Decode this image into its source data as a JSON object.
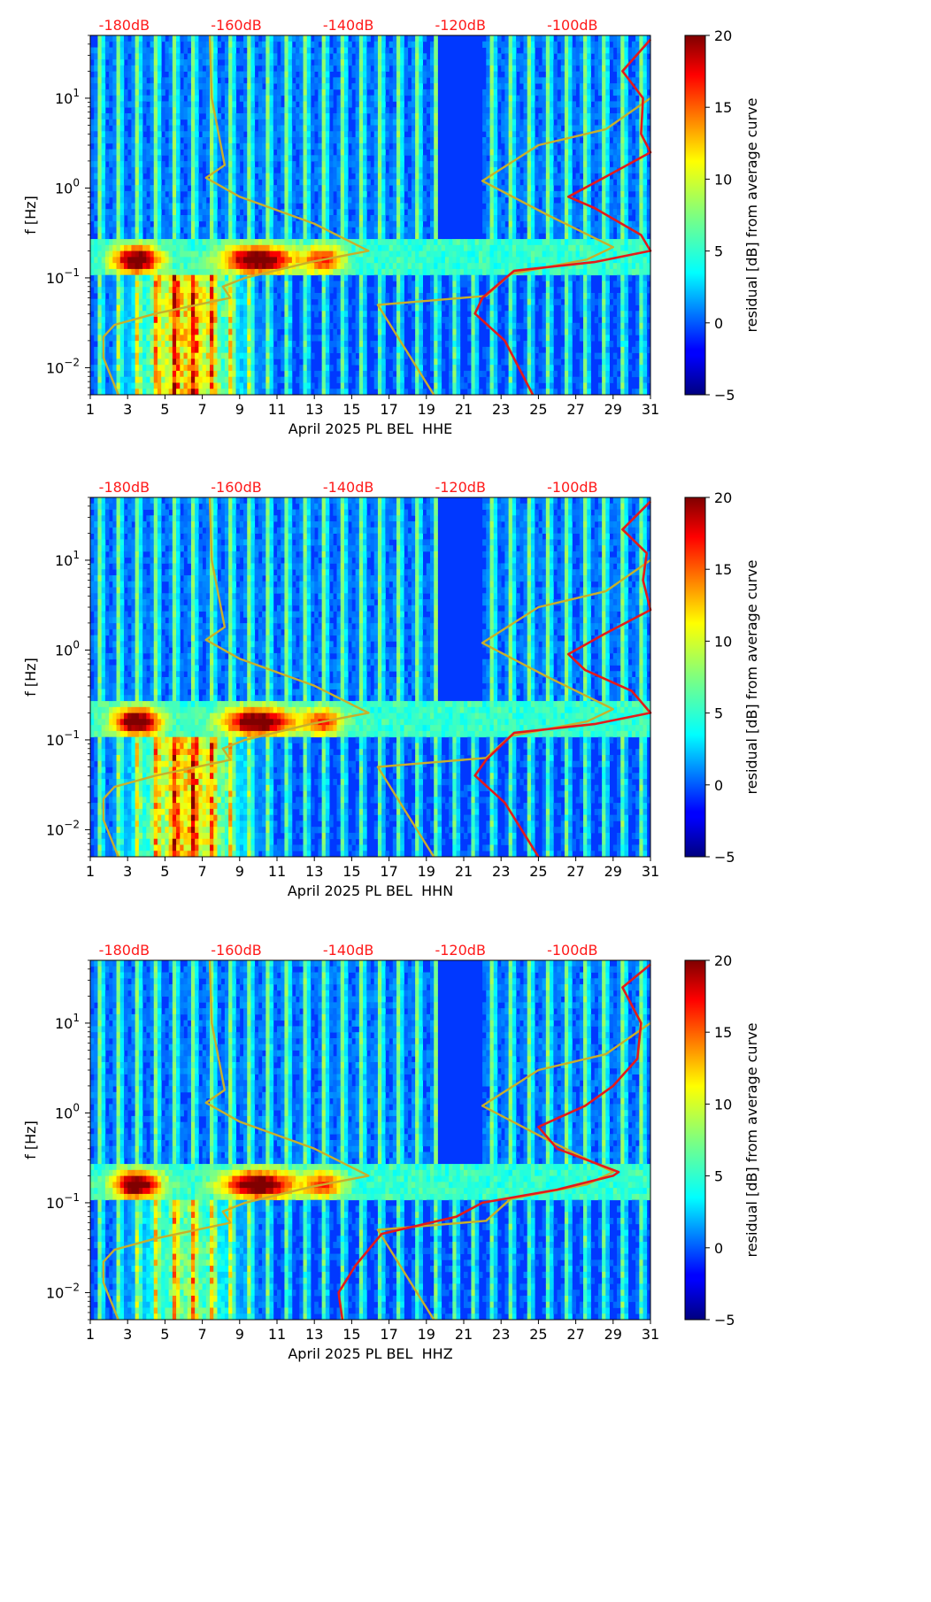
{
  "chart_data": [
    {
      "type": "heatmap",
      "title": "",
      "xlabel": "April 2025 PL BEL  HHE",
      "ylabel": "f [Hz]",
      "x_ticks": [
        "1",
        "3",
        "5",
        "7",
        "9",
        "11",
        "13",
        "15",
        "17",
        "19",
        "21",
        "23",
        "25",
        "27",
        "29",
        "31"
      ],
      "y_ticks": [
        {
          "exp": "1",
          "value": 10
        },
        {
          "exp": "0",
          "value": 1
        },
        {
          "exp": "−1",
          "value": 0.1
        },
        {
          "exp": "−2",
          "value": 0.01
        }
      ],
      "xlim": [
        1,
        31
      ],
      "ylim": [
        0.005,
        50
      ],
      "top_labels": [
        "-180dB",
        "-160dB",
        "-140dB",
        "-120dB",
        "-100dB"
      ],
      "colorbar": {
        "label": "residual [dB] from average curve",
        "ticks": [
          "20",
          "15",
          "10",
          "5",
          "0",
          "−5"
        ],
        "range": [
          -5,
          20
        ]
      },
      "lines": [
        {
          "name": "model curve (yellow)",
          "color": "#c8b02a",
          "points": [
            [
              2.5,
              0.005
            ],
            [
              1.7,
              0.013
            ],
            [
              1.7,
              0.022
            ],
            [
              2.3,
              0.03
            ],
            [
              4.5,
              0.04
            ],
            [
              8.5,
              0.06
            ],
            [
              8.1,
              0.08
            ],
            [
              9.3,
              0.1
            ],
            [
              12.8,
              0.15
            ],
            [
              15.9,
              0.2
            ],
            [
              13,
              0.4
            ],
            [
              9,
              0.8
            ],
            [
              7.2,
              1.3
            ],
            [
              8.2,
              1.8
            ],
            [
              7.5,
              10
            ],
            [
              7.4,
              50
            ]
          ]
        },
        {
          "name": "model curve (yellow, right)",
          "color": "#c8b02a",
          "points": [
            [
              19.4,
              0.005
            ],
            [
              16.4,
              0.05
            ],
            [
              22.2,
              0.063
            ],
            [
              23.5,
              0.11
            ],
            [
              27.6,
              0.16
            ],
            [
              29,
              0.22
            ],
            [
              25.5,
              0.5
            ],
            [
              22,
              1.2
            ],
            [
              25,
              3
            ],
            [
              28.6,
              4.5
            ],
            [
              31,
              10
            ]
          ]
        },
        {
          "name": "PSD curve (red)",
          "color": "#e41a1a",
          "points": [
            [
              24.7,
              0.005
            ],
            [
              23.2,
              0.02
            ],
            [
              21.6,
              0.04
            ],
            [
              22,
              0.06
            ],
            [
              23.7,
              0.12
            ],
            [
              28,
              0.15
            ],
            [
              31,
              0.2
            ],
            [
              30.5,
              0.3
            ],
            [
              28,
              0.6
            ],
            [
              26.6,
              0.8
            ],
            [
              28.5,
              1.3
            ],
            [
              31,
              2.5
            ],
            [
              30.5,
              4
            ],
            [
              30.6,
              10
            ],
            [
              29.5,
              20
            ],
            [
              31,
              45
            ]
          ]
        }
      ]
    },
    {
      "type": "heatmap",
      "title": "",
      "xlabel": "April 2025 PL BEL  HHN",
      "ylabel": "f [Hz]",
      "x_ticks": [
        "1",
        "3",
        "5",
        "7",
        "9",
        "11",
        "13",
        "15",
        "17",
        "19",
        "21",
        "23",
        "25",
        "27",
        "29",
        "31"
      ],
      "y_ticks": [
        {
          "exp": "1",
          "value": 10
        },
        {
          "exp": "0",
          "value": 1
        },
        {
          "exp": "−1",
          "value": 0.1
        },
        {
          "exp": "−2",
          "value": 0.01
        }
      ],
      "xlim": [
        1,
        31
      ],
      "ylim": [
        0.005,
        50
      ],
      "top_labels": [
        "-180dB",
        "-160dB",
        "-140dB",
        "-120dB",
        "-100dB"
      ],
      "colorbar": {
        "label": "residual [dB] from average curve",
        "ticks": [
          "20",
          "15",
          "10",
          "5",
          "0",
          "−5"
        ],
        "range": [
          -5,
          20
        ]
      },
      "lines": [
        {
          "name": "model curve (yellow)",
          "color": "#c8b02a",
          "points": [
            [
              2.5,
              0.005
            ],
            [
              1.7,
              0.013
            ],
            [
              1.7,
              0.022
            ],
            [
              2.3,
              0.03
            ],
            [
              4.5,
              0.04
            ],
            [
              8.5,
              0.06
            ],
            [
              8.1,
              0.08
            ],
            [
              9.3,
              0.1
            ],
            [
              12.8,
              0.15
            ],
            [
              15.9,
              0.2
            ],
            [
              13,
              0.4
            ],
            [
              9,
              0.8
            ],
            [
              7.2,
              1.3
            ],
            [
              8.2,
              1.8
            ],
            [
              7.5,
              10
            ],
            [
              7.4,
              50
            ]
          ]
        },
        {
          "name": "model curve (yellow, right)",
          "color": "#c8b02a",
          "points": [
            [
              19.4,
              0.005
            ],
            [
              16.4,
              0.05
            ],
            [
              22.2,
              0.063
            ],
            [
              23.5,
              0.11
            ],
            [
              27.6,
              0.16
            ],
            [
              29,
              0.22
            ],
            [
              25.5,
              0.5
            ],
            [
              22,
              1.2
            ],
            [
              25,
              3
            ],
            [
              28.6,
              4.5
            ],
            [
              31,
              10
            ]
          ]
        },
        {
          "name": "PSD curve (red)",
          "color": "#e41a1a",
          "points": [
            [
              25,
              0.005
            ],
            [
              23.2,
              0.02
            ],
            [
              21.6,
              0.04
            ],
            [
              22.2,
              0.06
            ],
            [
              23.7,
              0.12
            ],
            [
              28,
              0.15
            ],
            [
              31,
              0.2
            ],
            [
              30,
              0.35
            ],
            [
              27.5,
              0.6
            ],
            [
              26.6,
              0.9
            ],
            [
              28.5,
              1.5
            ],
            [
              31,
              2.8
            ],
            [
              30.6,
              6
            ],
            [
              30.8,
              12
            ],
            [
              29.5,
              22
            ],
            [
              31,
              45
            ]
          ]
        }
      ]
    },
    {
      "type": "heatmap",
      "title": "",
      "xlabel": "April 2025 PL BEL  HHZ",
      "ylabel": "f [Hz]",
      "x_ticks": [
        "1",
        "3",
        "5",
        "7",
        "9",
        "11",
        "13",
        "15",
        "17",
        "19",
        "21",
        "23",
        "25",
        "27",
        "29",
        "31"
      ],
      "y_ticks": [
        {
          "exp": "1",
          "value": 10
        },
        {
          "exp": "0",
          "value": 1
        },
        {
          "exp": "−1",
          "value": 0.1
        },
        {
          "exp": "−2",
          "value": 0.01
        }
      ],
      "xlim": [
        1,
        31
      ],
      "ylim": [
        0.005,
        50
      ],
      "top_labels": [
        "-180dB",
        "-160dB",
        "-140dB",
        "-120dB",
        "-100dB"
      ],
      "colorbar": {
        "label": "residual [dB] from average curve",
        "ticks": [
          "20",
          "15",
          "10",
          "5",
          "0",
          "−5"
        ],
        "range": [
          -5,
          20
        ]
      },
      "lines": [
        {
          "name": "model curve (yellow)",
          "color": "#c8b02a",
          "points": [
            [
              2.5,
              0.005
            ],
            [
              1.7,
              0.013
            ],
            [
              1.7,
              0.022
            ],
            [
              2.3,
              0.03
            ],
            [
              4.5,
              0.04
            ],
            [
              8.5,
              0.06
            ],
            [
              8.1,
              0.08
            ],
            [
              9.3,
              0.1
            ],
            [
              12.8,
              0.15
            ],
            [
              15.9,
              0.2
            ],
            [
              13,
              0.4
            ],
            [
              9,
              0.8
            ],
            [
              7.2,
              1.3
            ],
            [
              8.2,
              1.8
            ],
            [
              7.5,
              10
            ],
            [
              7.4,
              50
            ]
          ]
        },
        {
          "name": "model curve (yellow, right)",
          "color": "#c8b02a",
          "points": [
            [
              19.4,
              0.005
            ],
            [
              16.4,
              0.05
            ],
            [
              22.2,
              0.063
            ],
            [
              23.5,
              0.11
            ],
            [
              27.6,
              0.16
            ],
            [
              29,
              0.22
            ],
            [
              25.5,
              0.5
            ],
            [
              22,
              1.2
            ],
            [
              25,
              3
            ],
            [
              28.6,
              4.5
            ],
            [
              31,
              10
            ]
          ]
        },
        {
          "name": "PSD curve (red)",
          "color": "#e41a1a",
          "points": [
            [
              14.5,
              0.005
            ],
            [
              14.3,
              0.01
            ],
            [
              15.2,
              0.02
            ],
            [
              16.6,
              0.045
            ],
            [
              20.6,
              0.07
            ],
            [
              22,
              0.1
            ],
            [
              26,
              0.14
            ],
            [
              29,
              0.2
            ],
            [
              29.3,
              0.22
            ],
            [
              26,
              0.4
            ],
            [
              25,
              0.7
            ],
            [
              27.5,
              1.2
            ],
            [
              29,
              2
            ],
            [
              30.3,
              4
            ],
            [
              30.5,
              10
            ],
            [
              29.5,
              25
            ],
            [
              31,
              45
            ]
          ]
        }
      ]
    }
  ]
}
